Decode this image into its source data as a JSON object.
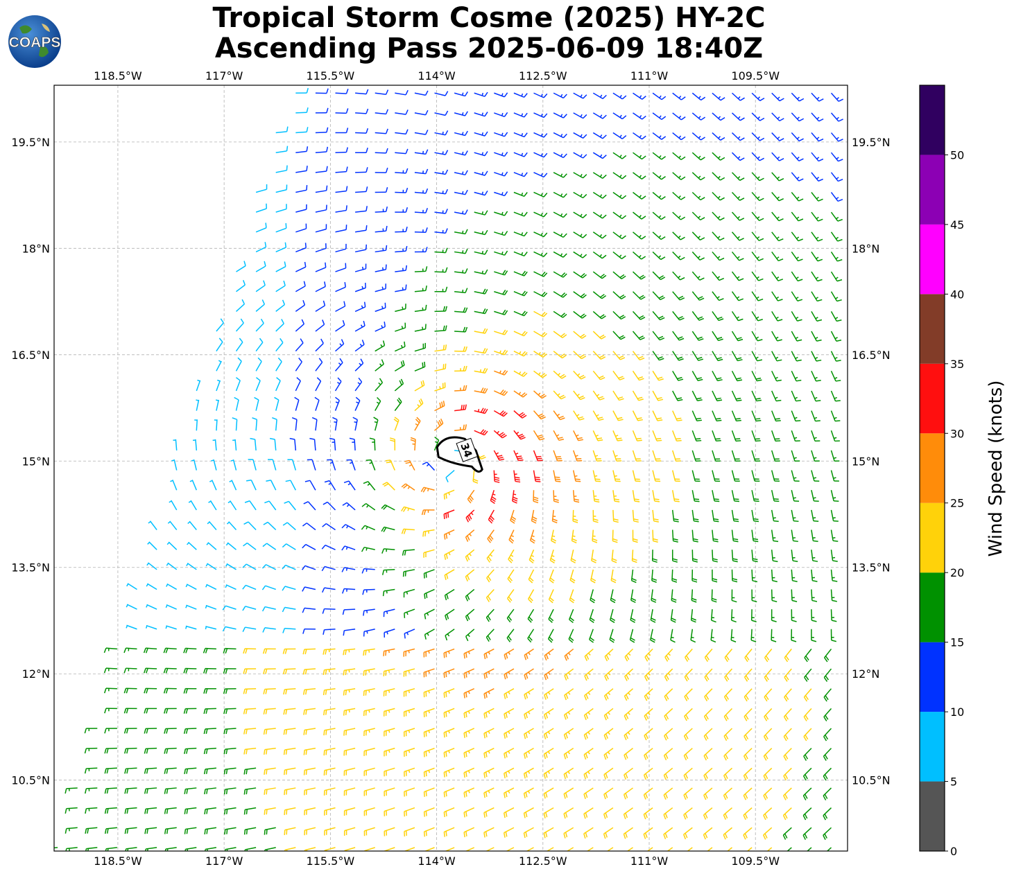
{
  "title": {
    "line1": "Tropical Storm Cosme (2025) HY-2C",
    "line2": "Ascending Pass 2025-06-09 18:40Z"
  },
  "logo": {
    "text": "COAPS",
    "icon": "globe-icon"
  },
  "map": {
    "lon_labels": [
      "118.5°W",
      "117°W",
      "115.5°W",
      "114°W",
      "112.5°W",
      "111°W",
      "109.5°W"
    ],
    "lon_values": [
      -118.5,
      -117,
      -115.5,
      -114,
      -112.5,
      -111,
      -109.5
    ],
    "lat_labels": [
      "19.5°N",
      "18°N",
      "16.5°N",
      "15°N",
      "13.5°N",
      "12°N",
      "10.5°N"
    ],
    "lat_values": [
      19.5,
      18,
      16.5,
      15,
      13.5,
      12,
      10.5
    ],
    "lon_range": [
      -119.4,
      -108.2
    ],
    "lat_range": [
      9.5,
      20.3
    ],
    "grid": true,
    "contour_label": "34",
    "storm_center": {
      "lon": -113.7,
      "lat": 15.0
    }
  },
  "colorbar": {
    "title": "Wind Speed (knots)",
    "tick_labels": [
      "0",
      "5",
      "10",
      "15",
      "20",
      "25",
      "30",
      "35",
      "40",
      "45",
      "50"
    ],
    "bounds": [
      0,
      5,
      10,
      15,
      20,
      25,
      30,
      35,
      40,
      45,
      50,
      55
    ],
    "colors": [
      "#555555",
      "#00bfff",
      "#0032ff",
      "#009100",
      "#ffd20a",
      "#ff8c0a",
      "#ff0f0f",
      "#823c28",
      "#ff00ff",
      "#8c00b4",
      "#300060"
    ]
  }
}
